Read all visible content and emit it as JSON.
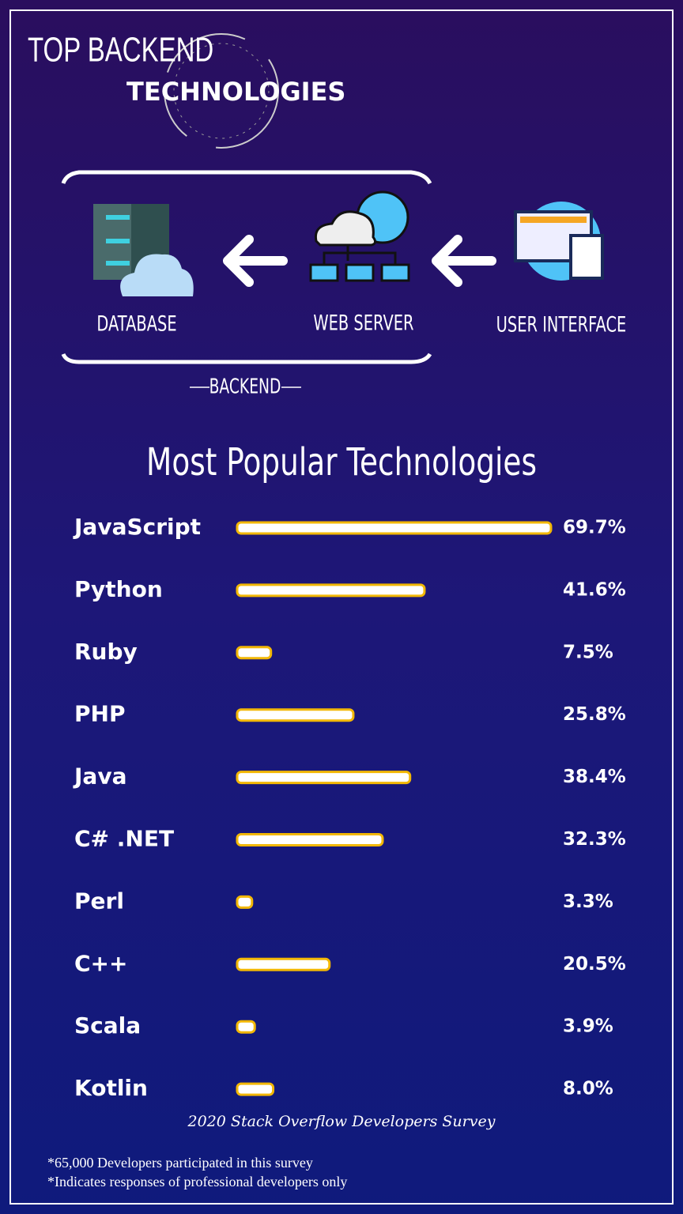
{
  "header": {
    "title_line1": "TOP BACKEND",
    "title_line2": "TECHNOLOGIES"
  },
  "diagram": {
    "nodes": [
      "DATABASE",
      "WEB SERVER",
      "USER INTERFACE"
    ],
    "group_label": "BACKEND"
  },
  "chart_data": {
    "type": "bar",
    "orientation": "horizontal",
    "title": "Most Popular Technologies",
    "categories": [
      "JavaScript",
      "Python",
      "Ruby",
      "PHP",
      "Java",
      "C# .NET",
      "Perl",
      "C++",
      "Scala",
      "Kotlin"
    ],
    "values": [
      69.7,
      41.6,
      7.5,
      25.8,
      38.4,
      32.3,
      3.3,
      20.5,
      3.9,
      8.0
    ],
    "value_labels": [
      "69.7%",
      "41.6%",
      "7.5%",
      "25.8%",
      "38.4%",
      "32.3%",
      "3.3%",
      "20.5%",
      "3.9%",
      "8.0%"
    ],
    "color": "#ffffff",
    "edge_color": "#f2b705",
    "source": "2020 Stack Overflow Developers Survey"
  },
  "footer": {
    "notes": [
      "*65,000 Developers participated in this survey",
      "*Indicates responses of professional developers only"
    ]
  }
}
